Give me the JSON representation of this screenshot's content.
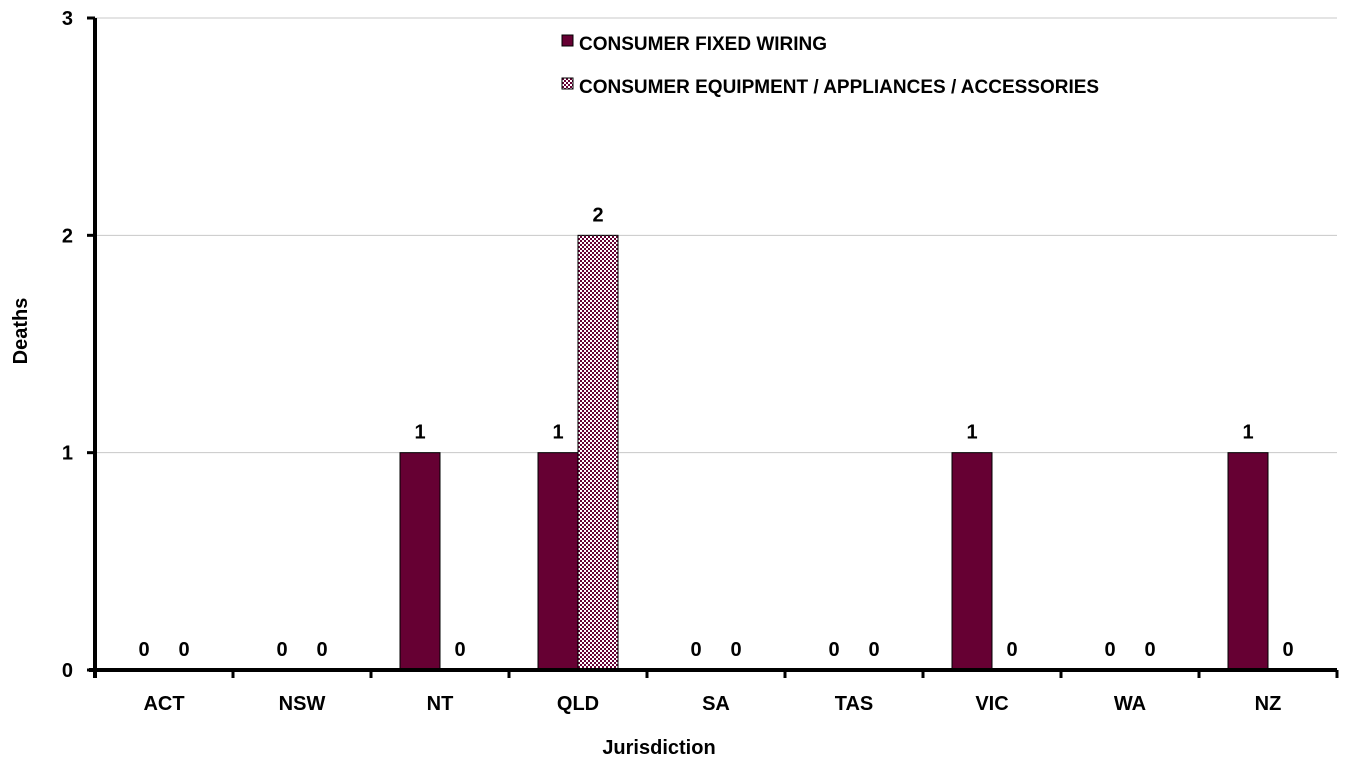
{
  "chart_data": {
    "type": "bar",
    "title": "",
    "xlabel": "Jurisdiction",
    "ylabel": "Deaths",
    "ylim": [
      0,
      3
    ],
    "yticks": [
      0,
      1,
      2,
      3
    ],
    "grid": true,
    "legend_position": "top-center",
    "categories": [
      "ACT",
      "NSW",
      "NT",
      "QLD",
      "SA",
      "TAS",
      "VIC",
      "WA",
      "NZ"
    ],
    "series": [
      {
        "name": "CONSUMER FIXED WIRING",
        "values": [
          0,
          0,
          1,
          1,
          0,
          0,
          1,
          0,
          1
        ],
        "color": "#660033",
        "pattern": "solid"
      },
      {
        "name": "CONSUMER EQUIPMENT / APPLIANCES / ACCESSORIES",
        "values": [
          0,
          0,
          0,
          2,
          0,
          0,
          0,
          0,
          0
        ],
        "color": "#660033",
        "pattern": "checker"
      }
    ]
  }
}
